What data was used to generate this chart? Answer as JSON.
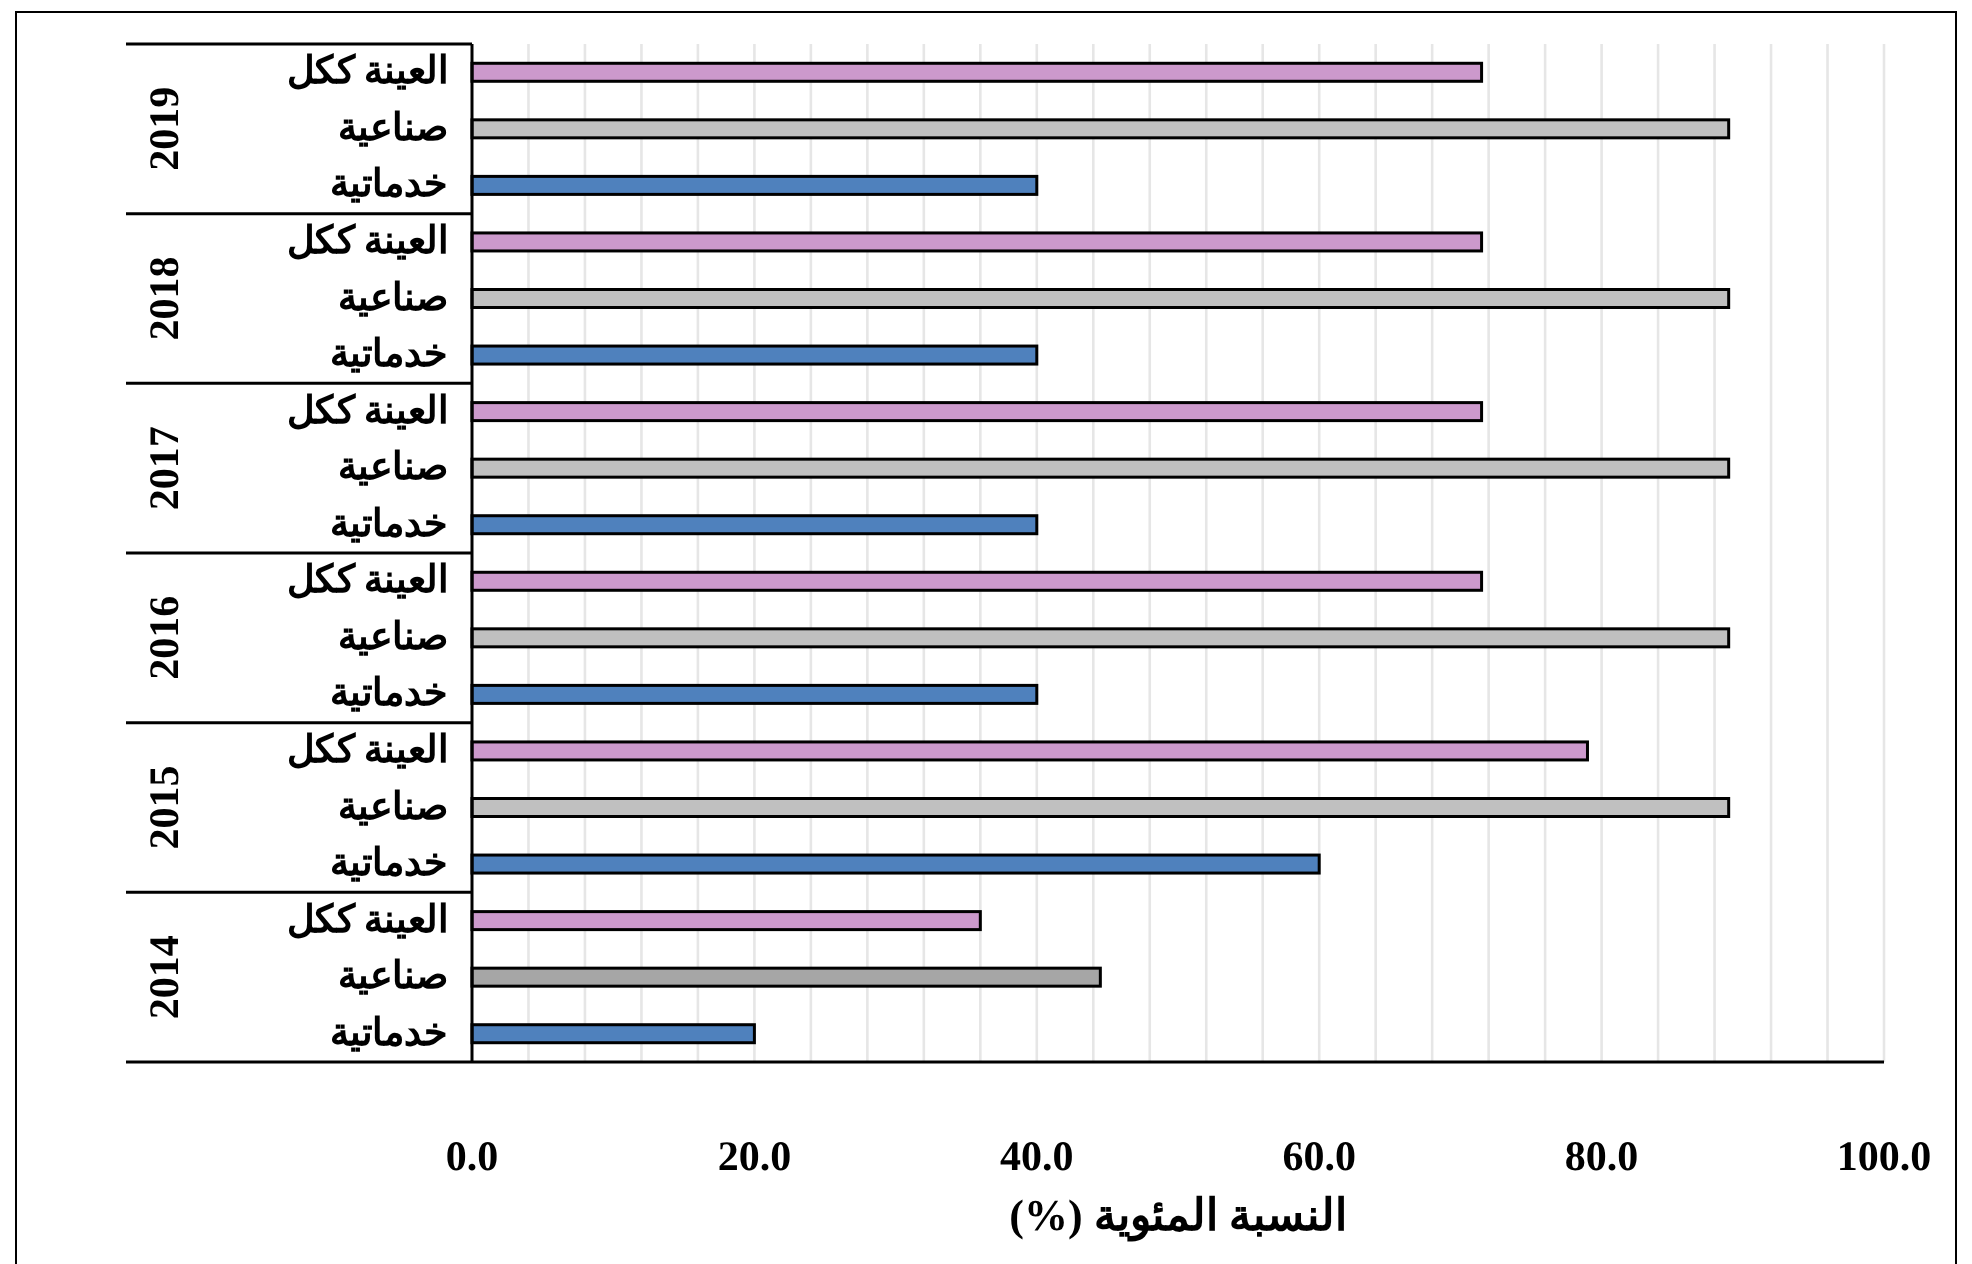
{
  "chart_data": {
    "type": "bar",
    "orientation": "horizontal",
    "xlabel": "النسبة المئوية (%)",
    "categories": [
      "2019",
      "2018",
      "2017",
      "2016",
      "2015",
      "2014"
    ],
    "series": [
      {
        "name": "العينة ككل",
        "color": "#cc99cc",
        "values": [
          71.5,
          71.5,
          71.5,
          71.5,
          79.0,
          36.0
        ]
      },
      {
        "name": "صناعية",
        "colors": [
          "#c0c0c0",
          "#c0c0c0",
          "#c0c0c0",
          "#c0c0c0",
          "#c0c0c0",
          "#a6a6a6"
        ],
        "values": [
          89.0,
          89.0,
          89.0,
          89.0,
          89.0,
          44.5
        ]
      },
      {
        "name": "خدماتية",
        "color": "#4f81bd",
        "values": [
          40.0,
          40.0,
          40.0,
          40.0,
          60.0,
          20.0
        ]
      }
    ],
    "xlim": [
      0,
      100
    ],
    "xticks": [
      {
        "value": 0,
        "label": "0.0"
      },
      {
        "value": 4,
        "label": null
      },
      {
        "value": 8,
        "label": null
      },
      {
        "value": 12,
        "label": null
      },
      {
        "value": 16,
        "label": null
      },
      {
        "value": 20,
        "label": "20.0"
      },
      {
        "value": 24,
        "label": null
      },
      {
        "value": 28,
        "label": null
      },
      {
        "value": 32,
        "label": null
      },
      {
        "value": 36,
        "label": null
      },
      {
        "value": 40,
        "label": "40.0"
      },
      {
        "value": 44,
        "label": null
      },
      {
        "value": 48,
        "label": null
      },
      {
        "value": 52,
        "label": null
      },
      {
        "value": 56,
        "label": null
      },
      {
        "value": 60,
        "label": "60.0"
      },
      {
        "value": 64,
        "label": null
      },
      {
        "value": 68,
        "label": null
      },
      {
        "value": 72,
        "label": null
      },
      {
        "value": 76,
        "label": null
      },
      {
        "value": 80,
        "label": "80.0"
      },
      {
        "value": 84,
        "label": null
      },
      {
        "value": 88,
        "label": null
      },
      {
        "value": 92,
        "label": null
      },
      {
        "value": 96,
        "label": null
      },
      {
        "value": 100,
        "label": "100.0"
      }
    ],
    "grid": "x"
  }
}
